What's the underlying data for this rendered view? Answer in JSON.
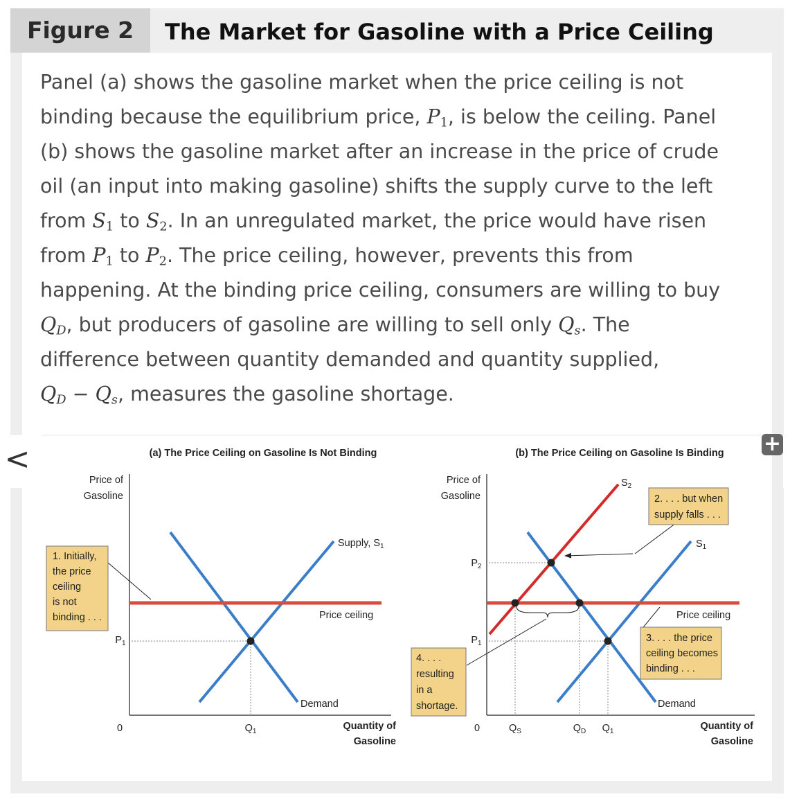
{
  "figure_tag": "Figure 2",
  "figure_title": "The Market for Gasoline with a Price Ceiling",
  "caption": {
    "line1": "Panel (a) shows the gasoline market when the price ceiling is not",
    "line2_a": "binding because the equilibrium price, ",
    "line2_math": "P",
    "line2_sub": "1",
    "line2_b": ", is below the ceiling. Panel",
    "line3": "(b) shows the gasoline market after an increase in the price of crude",
    "line4": "oil (an input into making gasoline) shifts the supply curve to the left",
    "line5_a": "from ",
    "line5_m1": "S",
    "line5_s1": "1",
    "line5_b": " to ",
    "line5_m2": "S",
    "line5_s2": "2",
    "line5_c": ". In an unregulated market, the price would have risen",
    "line6_a": "from ",
    "line6_m1": "P",
    "line6_s1": "1",
    "line6_b": " to ",
    "line6_m2": "P",
    "line6_s2": "2",
    "line6_c": ". The price ceiling, however, prevents this from",
    "line7": "happening. At the binding price ceiling, consumers are willing to buy",
    "line8_m1": "Q",
    "line8_s1": "D",
    "line8_a": ", but producers of gasoline are willing to sell only ",
    "line8_m2": "Q",
    "line8_s2": "s",
    "line8_b": ". The",
    "line9": "difference between quantity demanded and quantity supplied,",
    "line10_m1": "Q",
    "line10_s1": "D",
    "line10_minus": " − ",
    "line10_m2": "Q",
    "line10_s2": "s",
    "line10_a": ", measures the gasoline shortage."
  },
  "nav": {
    "prev_glyph": "<",
    "expand_glyph": "+"
  },
  "colors": {
    "supply": "#d42a2a",
    "demand": "#3a7ec9",
    "ceiling": "#d94a3f",
    "callout": "#f3d38a",
    "caption_text": "#4a4a4a"
  },
  "panel_a": {
    "title": "(a) The Price Ceiling on Gasoline Is Not Binding",
    "y_label_1": "Price of",
    "y_label_2": "Gasoline",
    "x_label_1": "Quantity of",
    "x_label_2": "Gasoline",
    "origin": "0",
    "p1": "P",
    "p1_sub": "1",
    "q1": "Q",
    "q1_sub": "1",
    "supply_label": "Supply, S",
    "supply_sub": "1",
    "ceiling_label": "Price ceiling",
    "demand_label": "Demand",
    "callout": [
      "1. Initially,",
      "the price",
      "ceiling",
      "is not",
      "binding . . ."
    ]
  },
  "panel_b": {
    "title": "(b) The Price Ceiling on Gasoline Is Binding",
    "y_label_1": "Price of",
    "y_label_2": "Gasoline",
    "x_label_1": "Quantity of",
    "x_label_2": "Gasoline",
    "origin": "0",
    "p1": "P",
    "p1_sub": "1",
    "p2": "P",
    "p2_sub": "2",
    "qs": "Q",
    "qs_sub": "S",
    "qd": "Q",
    "qd_sub": "D",
    "q1": "Q",
    "q1_sub": "1",
    "s2": "S",
    "s2_sub": "2",
    "s1": "S",
    "s1_sub": "1",
    "ceiling_label": "Price ceiling",
    "demand_label": "Demand",
    "callout_2": [
      "2. . . . but when",
      "supply falls . . ."
    ],
    "callout_3": [
      "3. . . . the price",
      "ceiling becomes",
      "binding . . ."
    ],
    "callout_4": [
      "4. . . .",
      "resulting",
      "in a",
      "shortage."
    ]
  }
}
